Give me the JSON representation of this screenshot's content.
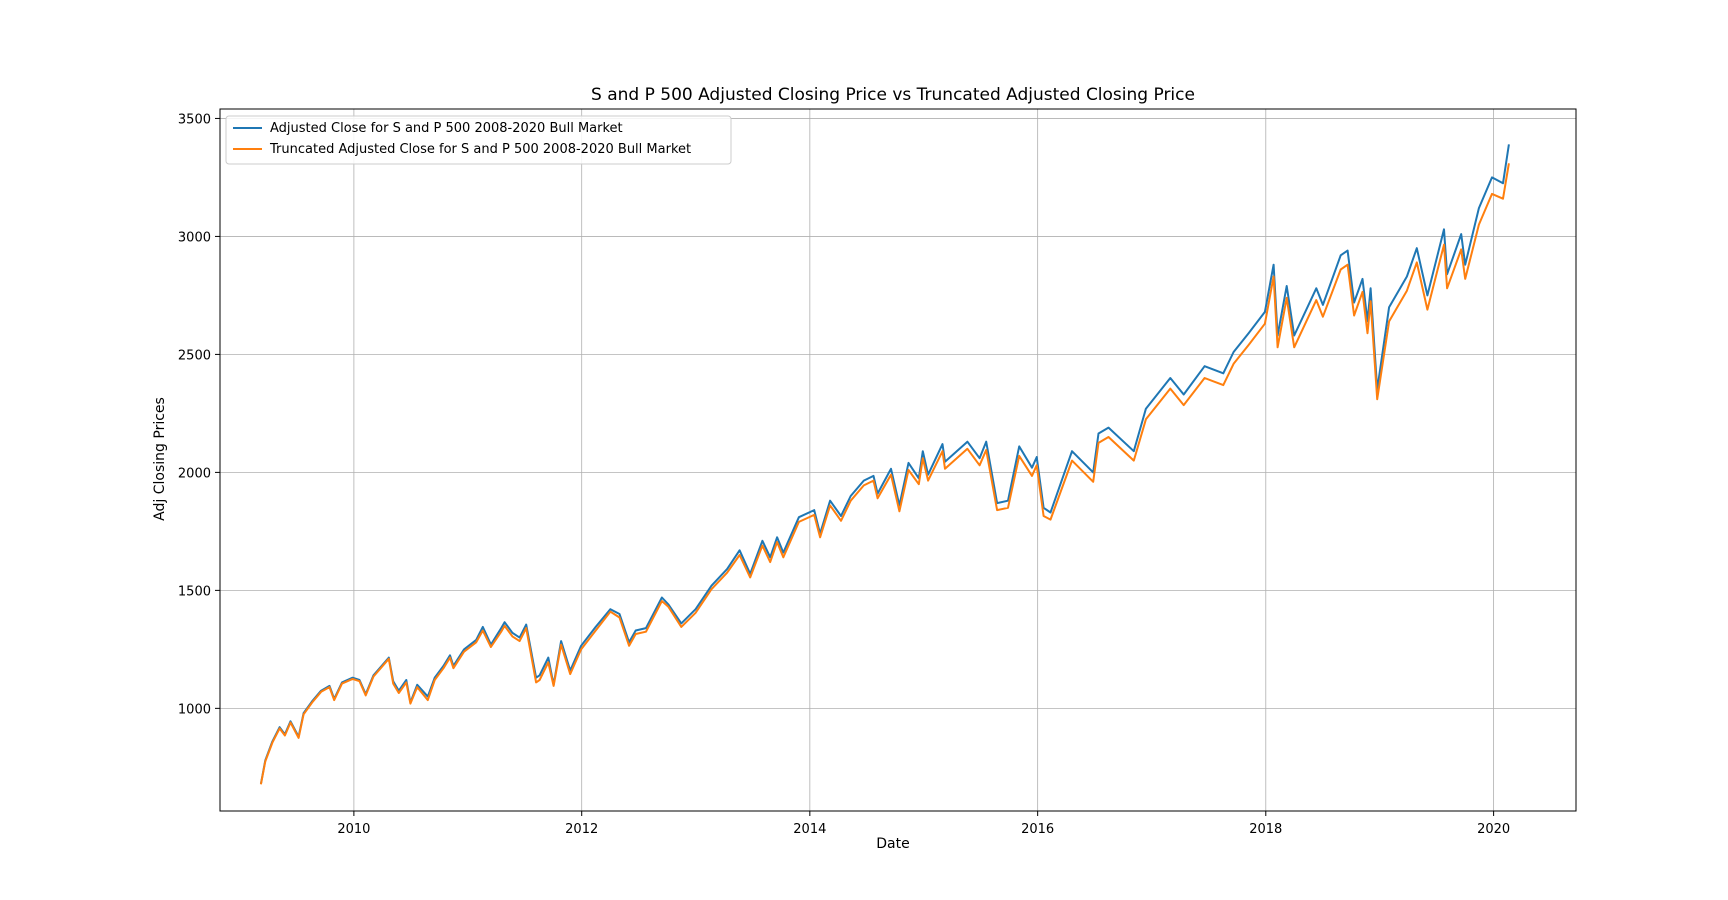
{
  "chart_data": {
    "type": "line",
    "title": "S and P 500 Adjusted Closing Price vs Truncated Adjusted Closing Price",
    "xlabel": "Date",
    "ylabel": "Adj Closing Prices",
    "xlim": [
      "2008-10-29",
      "2020-09-21"
    ],
    "ylim": [
      565,
      3540
    ],
    "x_ticks": [
      "2010",
      "2012",
      "2014",
      "2016",
      "2018",
      "2020"
    ],
    "x_tick_dates": [
      "2010-01-01",
      "2012-01-01",
      "2014-01-01",
      "2016-01-01",
      "2018-01-01",
      "2020-01-01"
    ],
    "y_ticks": [
      1000,
      1500,
      2000,
      2500,
      3000,
      3500
    ],
    "grid": true,
    "legend_position": "upper-left",
    "colors": {
      "adjusted": "#1f77b4",
      "truncated": "#ff7f0e"
    },
    "series": [
      {
        "name": "Adjusted Close for S and P 500 2008-2020 Bull Market",
        "x": [
          "2009-03-09",
          "2009-03-23",
          "2009-04-15",
          "2009-05-08",
          "2009-05-25",
          "2009-06-12",
          "2009-07-08",
          "2009-07-24",
          "2009-08-20",
          "2009-09-18",
          "2009-10-15",
          "2009-10-30",
          "2009-11-24",
          "2009-12-28",
          "2010-01-19",
          "2010-02-08",
          "2010-03-05",
          "2010-04-23",
          "2010-05-07",
          "2010-05-25",
          "2010-06-18",
          "2010-07-01",
          "2010-07-23",
          "2010-08-26",
          "2010-09-17",
          "2010-10-15",
          "2010-11-05",
          "2010-11-16",
          "2010-12-20",
          "2011-01-28",
          "2011-02-18",
          "2011-03-16",
          "2011-04-18",
          "2011-04-29",
          "2011-05-24",
          "2011-06-16",
          "2011-07-07",
          "2011-08-08",
          "2011-08-19",
          "2011-09-16",
          "2011-10-03",
          "2011-10-27",
          "2011-11-25",
          "2011-12-30",
          "2012-02-15",
          "2012-04-02",
          "2012-05-01",
          "2012-06-01",
          "2012-06-22",
          "2012-07-25",
          "2012-09-14",
          "2012-10-05",
          "2012-11-15",
          "2012-12-31",
          "2013-02-20",
          "2013-04-11",
          "2013-05-21",
          "2013-06-24",
          "2013-08-02",
          "2013-08-27",
          "2013-09-18",
          "2013-10-08",
          "2013-11-27",
          "2014-01-15",
          "2014-02-03",
          "2014-03-07",
          "2014-04-11",
          "2014-05-12",
          "2014-06-23",
          "2014-07-24",
          "2014-08-06",
          "2014-09-18",
          "2014-10-15",
          "2014-11-13",
          "2014-12-16",
          "2014-12-29",
          "2015-01-15",
          "2015-03-02",
          "2015-03-10",
          "2015-05-21",
          "2015-06-29",
          "2015-07-20",
          "2015-08-24",
          "2015-09-28",
          "2015-11-03",
          "2015-12-14",
          "2015-12-29",
          "2016-01-20",
          "2016-02-11",
          "2016-04-20",
          "2016-06-27",
          "2016-07-14",
          "2016-08-15",
          "2016-11-04",
          "2016-12-13",
          "2017-03-01",
          "2017-04-13",
          "2017-06-19",
          "2017-08-18",
          "2017-09-20",
          "2017-11-07",
          "2017-12-29",
          "2018-01-26",
          "2018-02-08",
          "2018-03-09",
          "2018-04-02",
          "2018-06-12",
          "2018-07-03",
          "2018-08-29",
          "2018-09-20",
          "2018-10-11",
          "2018-11-07",
          "2018-11-23",
          "2018-12-03",
          "2018-12-24",
          "2019-01-31",
          "2019-03-29",
          "2019-04-30",
          "2019-06-03",
          "2019-07-26",
          "2019-08-05",
          "2019-09-19",
          "2019-10-02",
          "2019-11-15",
          "2019-12-27",
          "2020-01-31",
          "2020-02-19"
        ],
        "values": [
          680,
          780,
          860,
          920,
          890,
          945,
          880,
          980,
          1030,
          1075,
          1095,
          1040,
          1110,
          1130,
          1120,
          1060,
          1140,
          1215,
          1115,
          1075,
          1120,
          1025,
          1100,
          1050,
          1130,
          1180,
          1225,
          1180,
          1250,
          1290,
          1345,
          1270,
          1340,
          1365,
          1320,
          1300,
          1355,
          1130,
          1140,
          1215,
          1100,
          1285,
          1160,
          1265,
          1345,
          1420,
          1400,
          1280,
          1330,
          1340,
          1470,
          1440,
          1360,
          1420,
          1520,
          1590,
          1670,
          1570,
          1710,
          1640,
          1725,
          1660,
          1810,
          1840,
          1740,
          1880,
          1815,
          1900,
          1965,
          1985,
          1910,
          2015,
          1860,
          2040,
          1975,
          2090,
          1990,
          2120,
          2045,
          2130,
          2060,
          2130,
          1870,
          1880,
          2110,
          2020,
          2065,
          1850,
          1830,
          2090,
          2000,
          2165,
          2190,
          2090,
          2270,
          2400,
          2330,
          2450,
          2420,
          2510,
          2590,
          2680,
          2880,
          2580,
          2790,
          2580,
          2780,
          2710,
          2920,
          2940,
          2720,
          2820,
          2640,
          2780,
          2350,
          2700,
          2830,
          2950,
          2750,
          3030,
          2840,
          3010,
          2880,
          3120,
          3250,
          3225,
          3390
        ]
      },
      {
        "name": "Truncated Adjusted Close for S and P 500 2008-2020 Bull Market",
        "x": [
          "2009-03-09",
          "2009-03-23",
          "2009-04-15",
          "2009-05-08",
          "2009-05-25",
          "2009-06-12",
          "2009-07-08",
          "2009-07-24",
          "2009-08-20",
          "2009-09-18",
          "2009-10-15",
          "2009-10-30",
          "2009-11-24",
          "2009-12-28",
          "2010-01-19",
          "2010-02-08",
          "2010-03-05",
          "2010-04-23",
          "2010-05-07",
          "2010-05-25",
          "2010-06-18",
          "2010-07-01",
          "2010-07-23",
          "2010-08-26",
          "2010-09-17",
          "2010-10-15",
          "2010-11-05",
          "2010-11-16",
          "2010-12-20",
          "2011-01-28",
          "2011-02-18",
          "2011-03-16",
          "2011-04-18",
          "2011-04-29",
          "2011-05-24",
          "2011-06-16",
          "2011-07-07",
          "2011-08-08",
          "2011-08-19",
          "2011-09-16",
          "2011-10-03",
          "2011-10-27",
          "2011-11-25",
          "2011-12-30",
          "2012-02-15",
          "2012-04-02",
          "2012-05-01",
          "2012-06-01",
          "2012-06-22",
          "2012-07-25",
          "2012-09-14",
          "2012-10-05",
          "2012-11-15",
          "2012-12-31",
          "2013-02-20",
          "2013-04-11",
          "2013-05-21",
          "2013-06-24",
          "2013-08-02",
          "2013-08-27",
          "2013-09-18",
          "2013-10-08",
          "2013-11-27",
          "2014-01-15",
          "2014-02-03",
          "2014-03-07",
          "2014-04-11",
          "2014-05-12",
          "2014-06-23",
          "2014-07-24",
          "2014-08-06",
          "2014-09-18",
          "2014-10-15",
          "2014-11-13",
          "2014-12-16",
          "2014-12-29",
          "2015-01-15",
          "2015-03-02",
          "2015-03-10",
          "2015-05-21",
          "2015-06-29",
          "2015-07-20",
          "2015-08-24",
          "2015-09-28",
          "2015-11-03",
          "2015-12-14",
          "2015-12-29",
          "2016-01-20",
          "2016-02-11",
          "2016-04-20",
          "2016-06-27",
          "2016-07-14",
          "2016-08-15",
          "2016-11-04",
          "2016-12-13",
          "2017-03-01",
          "2017-04-13",
          "2017-06-19",
          "2017-08-18",
          "2017-09-20",
          "2017-11-07",
          "2017-12-29",
          "2018-01-26",
          "2018-02-08",
          "2018-03-09",
          "2018-04-02",
          "2018-06-12",
          "2018-07-03",
          "2018-08-29",
          "2018-09-20",
          "2018-10-11",
          "2018-11-07",
          "2018-11-23",
          "2018-12-03",
          "2018-12-24",
          "2019-01-31",
          "2019-03-29",
          "2019-04-30",
          "2019-06-03",
          "2019-07-26",
          "2019-08-05",
          "2019-09-19",
          "2019-10-02",
          "2019-11-15",
          "2019-12-27",
          "2020-01-31",
          "2020-02-19"
        ],
        "values": [
          678,
          775,
          855,
          915,
          885,
          940,
          875,
          975,
          1025,
          1070,
          1090,
          1035,
          1105,
          1125,
          1115,
          1055,
          1135,
          1210,
          1105,
          1065,
          1110,
          1020,
          1090,
          1035,
          1120,
          1170,
          1215,
          1170,
          1240,
          1280,
          1330,
          1260,
          1325,
          1350,
          1305,
          1285,
          1340,
          1110,
          1120,
          1195,
          1095,
          1270,
          1145,
          1250,
          1330,
          1410,
          1385,
          1265,
          1315,
          1325,
          1455,
          1430,
          1345,
          1405,
          1505,
          1575,
          1650,
          1555,
          1690,
          1620,
          1705,
          1640,
          1790,
          1820,
          1725,
          1860,
          1795,
          1880,
          1945,
          1965,
          1890,
          1990,
          1835,
          2010,
          1950,
          2060,
          1965,
          2090,
          2015,
          2100,
          2030,
          2095,
          1840,
          1850,
          2070,
          1985,
          2030,
          1815,
          1800,
          2050,
          1960,
          2125,
          2150,
          2050,
          2225,
          2355,
          2285,
          2400,
          2370,
          2460,
          2540,
          2630,
          2830,
          2530,
          2740,
          2530,
          2730,
          2660,
          2860,
          2880,
          2665,
          2765,
          2590,
          2725,
          2310,
          2640,
          2770,
          2890,
          2690,
          2965,
          2780,
          2945,
          2820,
          3050,
          3180,
          3160,
          3310
        ]
      }
    ]
  }
}
